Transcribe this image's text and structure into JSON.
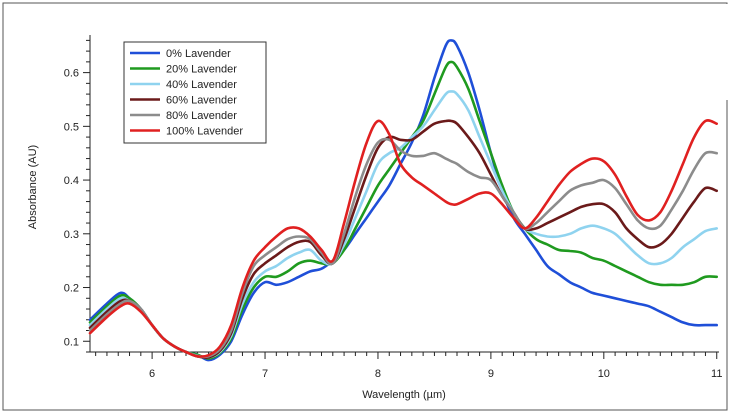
{
  "chart_data": {
    "type": "line",
    "xlabel": "Wavelength (µm)",
    "ylabel": "Absorbance (AU)",
    "xlim": [
      5.45,
      11.02
    ],
    "ylim": [
      0.08,
      0.67
    ],
    "x_ticks": [
      6,
      7,
      8,
      9,
      10,
      11
    ],
    "y_ticks": [
      0.1,
      0.2,
      0.3,
      0.4,
      0.5,
      0.6
    ],
    "legend_position": "top-left",
    "grid": false,
    "series": [
      {
        "name": "0% Lavender",
        "color": "#1f4fd8",
        "x": [
          5.45,
          5.6,
          5.72,
          5.8,
          5.9,
          6.0,
          6.1,
          6.2,
          6.3,
          6.4,
          6.5,
          6.6,
          6.7,
          6.8,
          6.9,
          7.0,
          7.1,
          7.2,
          7.3,
          7.4,
          7.5,
          7.6,
          7.7,
          7.8,
          7.9,
          8.0,
          8.1,
          8.2,
          8.3,
          8.4,
          8.5,
          8.6,
          8.65,
          8.7,
          8.8,
          8.9,
          9.0,
          9.1,
          9.2,
          9.3,
          9.4,
          9.5,
          9.6,
          9.7,
          9.8,
          9.9,
          10.0,
          10.1,
          10.2,
          10.3,
          10.4,
          10.5,
          10.6,
          10.7,
          10.8,
          10.9,
          11.0
        ],
        "y": [
          0.14,
          0.17,
          0.19,
          0.18,
          0.16,
          0.13,
          0.105,
          0.09,
          0.08,
          0.075,
          0.065,
          0.075,
          0.1,
          0.15,
          0.19,
          0.21,
          0.205,
          0.21,
          0.22,
          0.23,
          0.235,
          0.25,
          0.27,
          0.3,
          0.33,
          0.36,
          0.39,
          0.43,
          0.47,
          0.52,
          0.59,
          0.65,
          0.66,
          0.65,
          0.6,
          0.53,
          0.45,
          0.38,
          0.33,
          0.3,
          0.27,
          0.24,
          0.225,
          0.21,
          0.2,
          0.19,
          0.185,
          0.18,
          0.175,
          0.17,
          0.165,
          0.155,
          0.145,
          0.135,
          0.13,
          0.13,
          0.13
        ]
      },
      {
        "name": "20% Lavender",
        "color": "#1f9a1f",
        "x": [
          5.45,
          5.6,
          5.72,
          5.8,
          5.9,
          6.0,
          6.1,
          6.2,
          6.3,
          6.4,
          6.5,
          6.6,
          6.7,
          6.8,
          6.9,
          7.0,
          7.1,
          7.2,
          7.3,
          7.4,
          7.5,
          7.6,
          7.7,
          7.8,
          7.9,
          8.0,
          8.1,
          8.2,
          8.3,
          8.4,
          8.5,
          8.6,
          8.65,
          8.7,
          8.8,
          8.9,
          9.0,
          9.1,
          9.2,
          9.3,
          9.4,
          9.5,
          9.6,
          9.7,
          9.8,
          9.9,
          10.0,
          10.1,
          10.2,
          10.3,
          10.4,
          10.5,
          10.6,
          10.7,
          10.8,
          10.9,
          11.0
        ],
        "y": [
          0.135,
          0.165,
          0.185,
          0.18,
          0.16,
          0.13,
          0.105,
          0.09,
          0.08,
          0.075,
          0.068,
          0.078,
          0.105,
          0.16,
          0.2,
          0.22,
          0.22,
          0.23,
          0.245,
          0.25,
          0.245,
          0.245,
          0.27,
          0.31,
          0.35,
          0.39,
          0.42,
          0.45,
          0.48,
          0.51,
          0.56,
          0.61,
          0.62,
          0.61,
          0.57,
          0.51,
          0.45,
          0.39,
          0.34,
          0.31,
          0.29,
          0.28,
          0.27,
          0.268,
          0.265,
          0.255,
          0.25,
          0.24,
          0.23,
          0.22,
          0.21,
          0.205,
          0.205,
          0.205,
          0.21,
          0.22,
          0.22
        ]
      },
      {
        "name": "40% Lavender",
        "color": "#8fd3ef",
        "x": [
          5.45,
          5.6,
          5.72,
          5.8,
          5.9,
          6.0,
          6.1,
          6.2,
          6.3,
          6.4,
          6.5,
          6.6,
          6.7,
          6.8,
          6.9,
          7.0,
          7.1,
          7.2,
          7.3,
          7.4,
          7.5,
          7.6,
          7.7,
          7.8,
          7.9,
          8.0,
          8.1,
          8.2,
          8.3,
          8.4,
          8.5,
          8.6,
          8.65,
          8.7,
          8.8,
          8.9,
          9.0,
          9.1,
          9.2,
          9.3,
          9.4,
          9.5,
          9.6,
          9.7,
          9.8,
          9.9,
          10.0,
          10.1,
          10.2,
          10.3,
          10.4,
          10.5,
          10.6,
          10.7,
          10.8,
          10.9,
          11.0
        ],
        "y": [
          0.13,
          0.16,
          0.18,
          0.175,
          0.16,
          0.13,
          0.105,
          0.09,
          0.08,
          0.073,
          0.07,
          0.08,
          0.11,
          0.17,
          0.21,
          0.23,
          0.24,
          0.255,
          0.265,
          0.27,
          0.25,
          0.245,
          0.28,
          0.33,
          0.38,
          0.43,
          0.45,
          0.46,
          0.48,
          0.5,
          0.53,
          0.56,
          0.565,
          0.56,
          0.53,
          0.48,
          0.43,
          0.38,
          0.34,
          0.31,
          0.3,
          0.295,
          0.295,
          0.3,
          0.31,
          0.315,
          0.31,
          0.3,
          0.28,
          0.26,
          0.245,
          0.245,
          0.255,
          0.275,
          0.29,
          0.305,
          0.31
        ]
      },
      {
        "name": "60% Lavender",
        "color": "#6b1a1a",
        "x": [
          5.45,
          5.6,
          5.72,
          5.8,
          5.9,
          6.0,
          6.1,
          6.2,
          6.3,
          6.4,
          6.5,
          6.6,
          6.7,
          6.8,
          6.9,
          7.0,
          7.1,
          7.2,
          7.3,
          7.4,
          7.5,
          7.6,
          7.7,
          7.8,
          7.9,
          8.0,
          8.1,
          8.2,
          8.3,
          8.4,
          8.5,
          8.6,
          8.65,
          8.7,
          8.8,
          8.9,
          9.0,
          9.1,
          9.2,
          9.3,
          9.4,
          9.5,
          9.6,
          9.7,
          9.8,
          9.9,
          10.0,
          10.1,
          10.2,
          10.3,
          10.4,
          10.5,
          10.6,
          10.7,
          10.8,
          10.9,
          11.0
        ],
        "y": [
          0.125,
          0.155,
          0.175,
          0.175,
          0.16,
          0.13,
          0.105,
          0.09,
          0.08,
          0.072,
          0.07,
          0.082,
          0.115,
          0.18,
          0.225,
          0.245,
          0.26,
          0.275,
          0.285,
          0.285,
          0.26,
          0.245,
          0.29,
          0.35,
          0.41,
          0.46,
          0.48,
          0.475,
          0.475,
          0.49,
          0.505,
          0.51,
          0.51,
          0.505,
          0.48,
          0.45,
          0.41,
          0.37,
          0.34,
          0.31,
          0.31,
          0.32,
          0.33,
          0.34,
          0.35,
          0.355,
          0.355,
          0.34,
          0.31,
          0.29,
          0.275,
          0.28,
          0.3,
          0.33,
          0.36,
          0.385,
          0.38
        ]
      },
      {
        "name": "80% Lavender",
        "color": "#8c8c8c",
        "x": [
          5.45,
          5.6,
          5.72,
          5.8,
          5.9,
          6.0,
          6.1,
          6.2,
          6.3,
          6.4,
          6.5,
          6.6,
          6.7,
          6.8,
          6.9,
          7.0,
          7.1,
          7.2,
          7.3,
          7.4,
          7.5,
          7.6,
          7.7,
          7.8,
          7.9,
          8.0,
          8.1,
          8.2,
          8.3,
          8.4,
          8.5,
          8.6,
          8.65,
          8.7,
          8.8,
          8.9,
          9.0,
          9.1,
          9.2,
          9.3,
          9.4,
          9.5,
          9.6,
          9.7,
          9.8,
          9.9,
          10.0,
          10.1,
          10.2,
          10.3,
          10.4,
          10.5,
          10.6,
          10.7,
          10.8,
          10.9,
          11.0
        ],
        "y": [
          0.12,
          0.15,
          0.17,
          0.175,
          0.16,
          0.13,
          0.105,
          0.09,
          0.08,
          0.072,
          0.072,
          0.085,
          0.12,
          0.19,
          0.24,
          0.26,
          0.275,
          0.29,
          0.295,
          0.29,
          0.265,
          0.245,
          0.3,
          0.37,
          0.43,
          0.47,
          0.475,
          0.455,
          0.445,
          0.445,
          0.45,
          0.44,
          0.435,
          0.43,
          0.415,
          0.405,
          0.4,
          0.37,
          0.34,
          0.31,
          0.32,
          0.34,
          0.36,
          0.38,
          0.39,
          0.395,
          0.4,
          0.385,
          0.355,
          0.325,
          0.31,
          0.315,
          0.345,
          0.38,
          0.42,
          0.45,
          0.45
        ]
      },
      {
        "name": "100% Lavender",
        "color": "#e02020",
        "x": [
          5.45,
          5.6,
          5.72,
          5.8,
          5.9,
          6.0,
          6.1,
          6.2,
          6.3,
          6.4,
          6.5,
          6.6,
          6.7,
          6.8,
          6.9,
          7.0,
          7.1,
          7.2,
          7.3,
          7.4,
          7.5,
          7.6,
          7.7,
          7.8,
          7.9,
          8.0,
          8.1,
          8.2,
          8.3,
          8.4,
          8.5,
          8.6,
          8.65,
          8.7,
          8.8,
          8.9,
          9.0,
          9.1,
          9.2,
          9.3,
          9.4,
          9.5,
          9.6,
          9.7,
          9.8,
          9.9,
          10.0,
          10.1,
          10.2,
          10.3,
          10.4,
          10.5,
          10.6,
          10.7,
          10.8,
          10.9,
          11.0
        ],
        "y": [
          0.115,
          0.145,
          0.165,
          0.17,
          0.155,
          0.13,
          0.105,
          0.09,
          0.08,
          0.072,
          0.074,
          0.09,
          0.13,
          0.2,
          0.25,
          0.275,
          0.295,
          0.31,
          0.31,
          0.295,
          0.27,
          0.25,
          0.32,
          0.4,
          0.47,
          0.51,
          0.485,
          0.43,
          0.405,
          0.39,
          0.375,
          0.36,
          0.355,
          0.355,
          0.365,
          0.375,
          0.375,
          0.355,
          0.33,
          0.31,
          0.33,
          0.36,
          0.39,
          0.415,
          0.43,
          0.44,
          0.435,
          0.41,
          0.37,
          0.335,
          0.325,
          0.34,
          0.38,
          0.43,
          0.48,
          0.51,
          0.505
        ]
      }
    ]
  }
}
